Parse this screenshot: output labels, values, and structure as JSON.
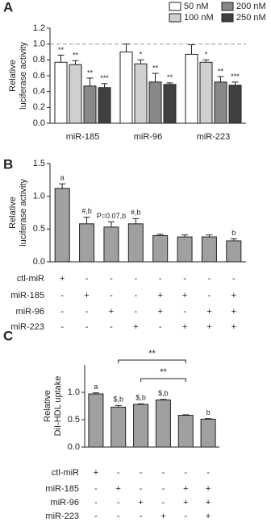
{
  "chart_data": [
    {
      "type": "grouped-bar",
      "panel": "A",
      "ylabel": [
        "Relative",
        "luciferase activity"
      ],
      "categories": [
        "miR-185",
        "miR-96",
        "miR-223"
      ],
      "series": [
        {
          "name": "50 nM",
          "color": "#ffffff",
          "values": [
            0.77,
            0.9,
            0.87
          ],
          "errors": [
            0.09,
            0.1,
            0.12
          ],
          "annotations": [
            "**",
            null,
            null
          ]
        },
        {
          "name": "100 nM",
          "color": "#d0d0d0",
          "values": [
            0.74,
            0.75,
            0.77
          ],
          "errors": [
            0.05,
            0.05,
            0.03
          ],
          "annotations": [
            "**",
            "*",
            "*"
          ]
        },
        {
          "name": "200 nM",
          "color": "#888888",
          "values": [
            0.47,
            0.52,
            0.52
          ],
          "errors": [
            0.1,
            0.11,
            0.07
          ],
          "annotations": [
            "**",
            "**",
            "**"
          ]
        },
        {
          "name": "250 nM",
          "color": "#404040",
          "values": [
            0.45,
            0.49,
            0.48
          ],
          "errors": [
            0.05,
            0.02,
            0.04
          ],
          "annotations": [
            "***",
            "**",
            "***"
          ]
        }
      ],
      "refline": 1.0,
      "ylim": [
        0,
        1.2
      ],
      "yticks": [
        {
          "value": 0,
          "label": "0.0"
        },
        0.2,
        0.4,
        0.6,
        0.8,
        {
          "value": 1,
          "label": "1.0"
        },
        1.2
      ]
    },
    {
      "type": "bar",
      "panel": "B",
      "ylabel": [
        "Relative",
        "luciferase activity"
      ],
      "color": "#a0a0a0",
      "values": [
        1.12,
        0.58,
        0.53,
        0.58,
        0.4,
        0.38,
        0.38,
        0.32
      ],
      "errors": [
        0.07,
        0.1,
        0.08,
        0.08,
        0.02,
        0.03,
        0.03,
        0.03
      ],
      "annotations": [
        "a",
        "#,b",
        "P=0.07,b",
        "#,b",
        null,
        null,
        null,
        "b"
      ],
      "ylim": [
        0,
        1.5
      ],
      "yticks": [
        {
          "value": 0,
          "label": "0.0"
        },
        0.5,
        {
          "value": 1,
          "label": "1.0"
        },
        1.5
      ],
      "conditions": [
        {
          "name": "ctl-miR",
          "signs": [
            "+",
            "-",
            "-",
            "-",
            "-",
            "-",
            "-",
            "-"
          ]
        },
        {
          "name": "miR-185",
          "signs": [
            "-",
            "+",
            "-",
            "-",
            "+",
            "+",
            "-",
            "+"
          ]
        },
        {
          "name": "miR-96",
          "signs": [
            "-",
            "-",
            "+",
            "-",
            "+",
            "-",
            "+",
            "+"
          ]
        },
        {
          "name": "miR-223",
          "signs": [
            "-",
            "-",
            "-",
            "+",
            "-",
            "+",
            "+",
            "+"
          ]
        }
      ]
    },
    {
      "type": "bar",
      "panel": "C",
      "ylabel": [
        "Relative",
        "DiI-HDL uptake"
      ],
      "color": "#a0a0a0",
      "values": [
        0.97,
        0.73,
        0.78,
        0.86,
        0.58,
        0.51
      ],
      "errors": [
        0.02,
        0.03,
        0.01,
        0.01,
        0.01,
        0.01
      ],
      "annotations": [
        "a",
        "$,b",
        "$,b",
        "$,b",
        null,
        "b"
      ],
      "brackets": [
        "**",
        "**"
      ],
      "ylim": [
        0,
        1.5
      ],
      "yticks": [
        {
          "value": 0,
          "label": "0.0"
        },
        0.5,
        {
          "value": 1,
          "label": "1.0"
        }
      ],
      "conditions": [
        {
          "name": "ctl-miR",
          "signs": [
            "+",
            "-",
            "-",
            "-",
            "-",
            "-"
          ]
        },
        {
          "name": "miR-185",
          "signs": [
            "-",
            "+",
            "-",
            "-",
            "+",
            "+"
          ]
        },
        {
          "name": "miR-96",
          "signs": [
            "-",
            "-",
            "+",
            "-",
            "+",
            "+"
          ]
        },
        {
          "name": "miR-223",
          "signs": [
            "-",
            "-",
            "-",
            "+",
            "-",
            "+"
          ]
        }
      ]
    }
  ]
}
